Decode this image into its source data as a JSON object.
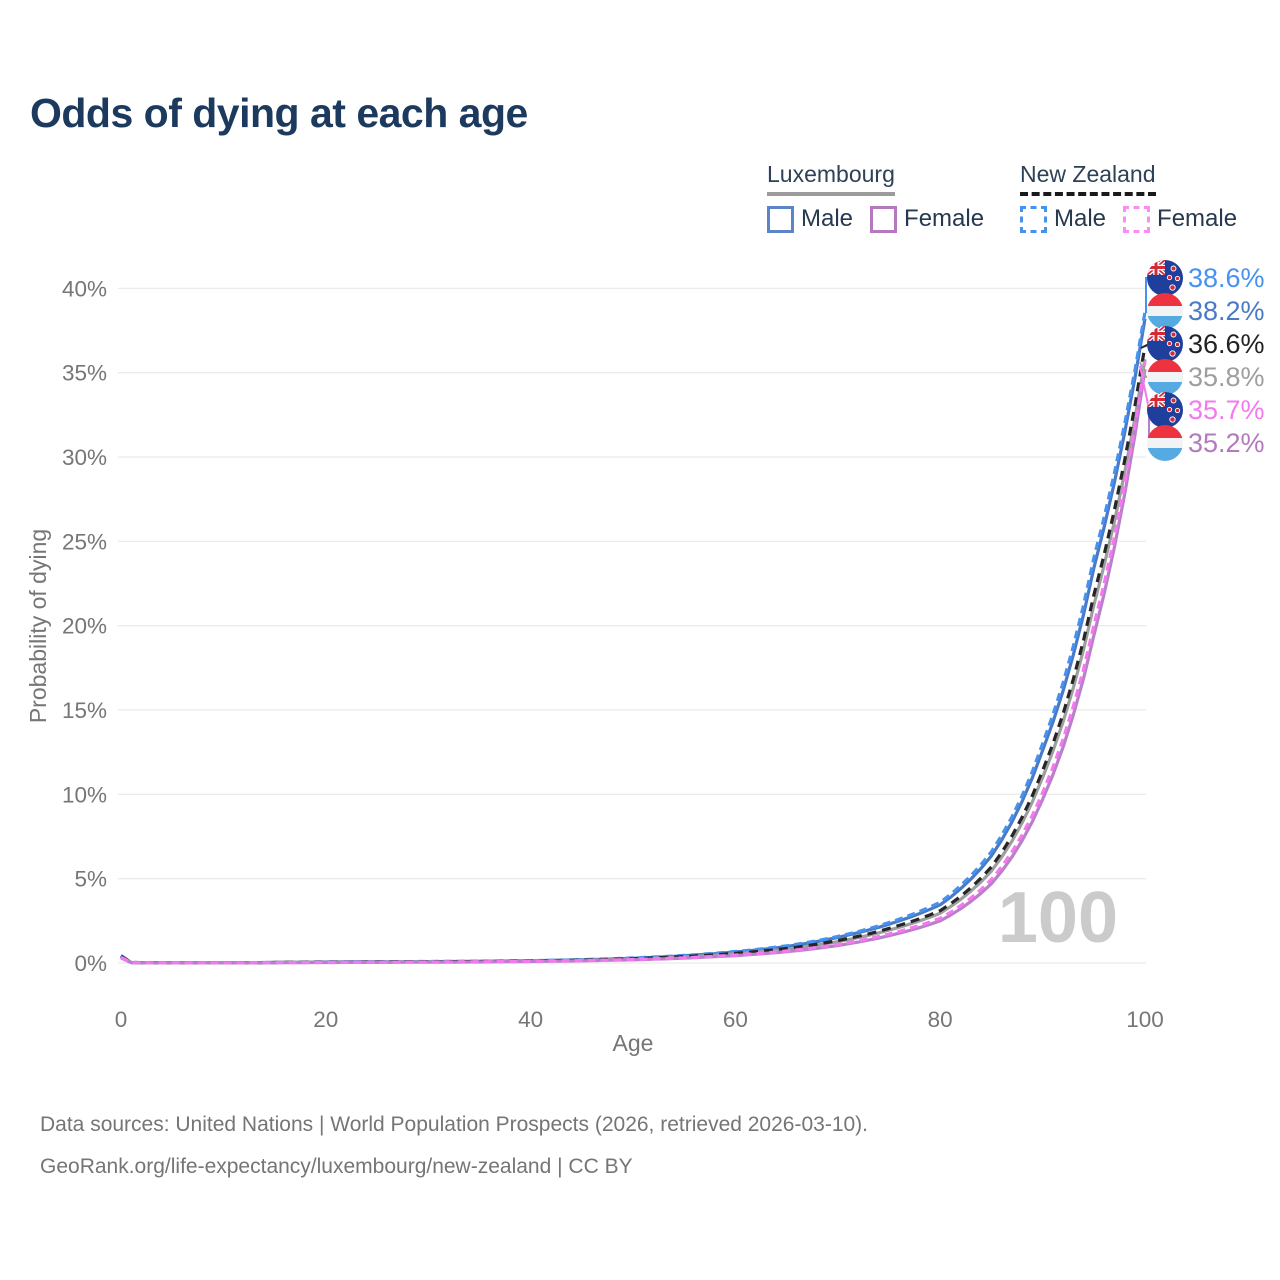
{
  "title": "Odds of dying at each age",
  "legend": {
    "groups": [
      {
        "id": "luxembourg",
        "label": "Luxembourg",
        "line_style": "solid",
        "line_color": "#9b9b9b",
        "items": [
          {
            "label": "Male",
            "color": "#5b84c9",
            "style": "solid"
          },
          {
            "label": "Female",
            "color": "#b678bf",
            "style": "solid"
          }
        ]
      },
      {
        "id": "new-zealand",
        "label": "New Zealand",
        "line_style": "dashed",
        "line_color": "#1a1a1a",
        "items": [
          {
            "label": "Male",
            "color": "#4692f0",
            "style": "dashed"
          },
          {
            "label": "Female",
            "color": "#f88df3",
            "style": "dashed"
          }
        ]
      }
    ]
  },
  "chart_data": {
    "type": "line",
    "title": "Odds of dying at each age",
    "xlabel": "Age",
    "ylabel": "Probability of dying",
    "xlim": [
      0,
      100
    ],
    "ylim_pct": [
      0,
      40
    ],
    "grid": "horizontal",
    "legend_position": "top-right",
    "watermark": "100",
    "x_ticks": [
      0,
      20,
      40,
      60,
      80,
      100
    ],
    "y_tick_values": [
      0,
      5,
      10,
      15,
      20,
      25,
      30,
      35,
      40
    ],
    "y_tick_labels": [
      "0%",
      "5%",
      "10%",
      "15%",
      "20%",
      "25%",
      "30%",
      "35%",
      "40%"
    ],
    "x": [
      0,
      1,
      5,
      10,
      15,
      20,
      25,
      30,
      35,
      40,
      45,
      50,
      55,
      60,
      65,
      70,
      75,
      80,
      85,
      90,
      95,
      100
    ],
    "series": [
      {
        "name": "Luxembourg Male",
        "country": "luxembourg",
        "sex": "male",
        "color": "#4a79c5",
        "dash": "solid",
        "end_label": "38.2%",
        "values_pct": [
          0.4,
          0.03,
          0.01,
          0.01,
          0.03,
          0.06,
          0.07,
          0.08,
          0.1,
          0.13,
          0.19,
          0.28,
          0.43,
          0.65,
          0.98,
          1.52,
          2.3,
          3.45,
          6.35,
          12.6,
          23.4,
          38.2
        ]
      },
      {
        "name": "New Zealand Male",
        "country": "new-zealand",
        "sex": "male",
        "color": "#4692f0",
        "dash": "dashed",
        "end_label": "38.6%",
        "values_pct": [
          0.45,
          0.03,
          0.01,
          0.01,
          0.04,
          0.07,
          0.08,
          0.09,
          0.11,
          0.14,
          0.2,
          0.3,
          0.45,
          0.68,
          1.02,
          1.58,
          2.4,
          3.6,
          6.6,
          13.0,
          24.0,
          38.6
        ]
      },
      {
        "name": "Luxembourg Both sexes",
        "country": "luxembourg",
        "sex": "both",
        "color": "#9e9e9e",
        "dash": "solid",
        "end_label": "35.8%",
        "values_pct": [
          0.35,
          0.03,
          0.01,
          0.01,
          0.03,
          0.05,
          0.06,
          0.07,
          0.08,
          0.11,
          0.16,
          0.24,
          0.36,
          0.54,
          0.82,
          1.27,
          1.95,
          2.95,
          5.45,
          11.0,
          21.2,
          35.8
        ]
      },
      {
        "name": "New Zealand Both sexes",
        "country": "new-zealand",
        "sex": "both",
        "color": "#262626",
        "dash": "dashed",
        "end_label": "36.6%",
        "values_pct": [
          0.4,
          0.03,
          0.01,
          0.01,
          0.03,
          0.05,
          0.06,
          0.07,
          0.09,
          0.12,
          0.17,
          0.25,
          0.38,
          0.57,
          0.86,
          1.33,
          2.05,
          3.1,
          5.7,
          11.4,
          21.8,
          36.6
        ]
      },
      {
        "name": "Luxembourg Female",
        "country": "luxembourg",
        "sex": "female",
        "color": "#b87fca",
        "dash": "solid",
        "end_label": "35.2%",
        "values_pct": [
          0.3,
          0.02,
          0.01,
          0.01,
          0.02,
          0.03,
          0.04,
          0.05,
          0.06,
          0.09,
          0.13,
          0.19,
          0.29,
          0.44,
          0.67,
          1.04,
          1.62,
          2.5,
          4.7,
          9.7,
          19.4,
          35.2
        ]
      },
      {
        "name": "New Zealand Female",
        "country": "new-zealand",
        "sex": "female",
        "color": "#f678f1",
        "dash": "dashed",
        "end_label": "35.7%",
        "values_pct": [
          0.35,
          0.02,
          0.01,
          0.01,
          0.02,
          0.03,
          0.04,
          0.05,
          0.07,
          0.1,
          0.14,
          0.21,
          0.31,
          0.47,
          0.71,
          1.1,
          1.72,
          2.65,
          4.95,
          10.1,
          20.0,
          35.7
        ]
      }
    ]
  },
  "end_labels": [
    {
      "flag": "new-zealand",
      "text": "38.6%",
      "color": "#4692f0"
    },
    {
      "flag": "luxembourg",
      "text": "38.2%",
      "color": "#4a79c5"
    },
    {
      "flag": "new-zealand",
      "text": "36.6%",
      "color": "#222222"
    },
    {
      "flag": "luxembourg",
      "text": "35.8%",
      "color": "#9e9e9e"
    },
    {
      "flag": "new-zealand",
      "text": "35.7%",
      "color": "#f678f1"
    },
    {
      "flag": "luxembourg",
      "text": "35.2%",
      "color": "#b279bd"
    }
  ],
  "flag_colors": {
    "luxembourg": {
      "top": "#ee3340",
      "middle": "#f2f3f4",
      "bottom": "#55aae2"
    },
    "new_zealand": {
      "field": "#1e3f9c",
      "cross": "#d42a35",
      "white": "#ffffff"
    }
  },
  "footer": {
    "line1": "Data sources: United Nations | World Population Prospects (2026, retrieved 2026-03-10).",
    "line2": "GeoRank.org/life-expectancy/luxembourg/new-zealand | CC BY"
  }
}
